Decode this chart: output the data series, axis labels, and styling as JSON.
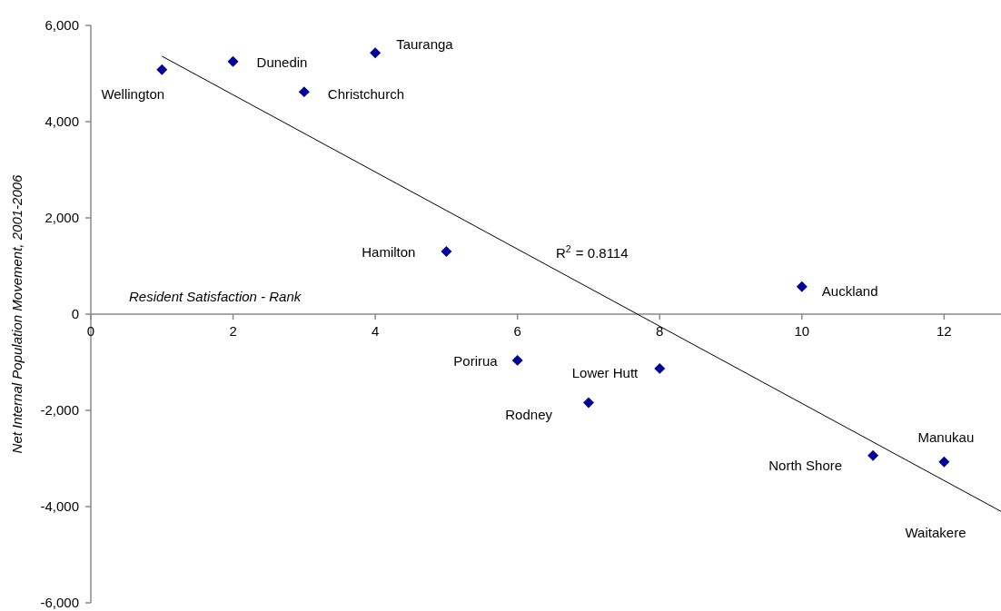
{
  "chart_data": {
    "type": "scatter",
    "xlabel": "Resident Satisfaction - Rank",
    "ylabel": "Net Internal Population Movement, 2001-2006",
    "series": [
      {
        "color": "#000099",
        "x": [
          1,
          2,
          3,
          4,
          5,
          6,
          7,
          8,
          10,
          11,
          12
        ],
        "values": [
          5080,
          5250,
          4620,
          5430,
          1300,
          -960,
          -1840,
          -1130,
          570,
          -2940,
          -3070
        ]
      },
      {
        "type": "line",
        "marker": "none",
        "color": "#000000",
        "x": [
          1,
          12.8
        ],
        "values": [
          5360,
          -4100
        ]
      }
    ],
    "xlim": [
      0,
      12.8
    ],
    "xticks": [
      0,
      2,
      4,
      6,
      8,
      10,
      12
    ],
    "ylim": [
      -6000,
      6000
    ],
    "yticks": [
      {
        "value": -6000,
        "label": "-6,000"
      },
      {
        "value": -4000,
        "label": "-4,000"
      },
      {
        "value": -2000,
        "label": "-2,000"
      },
      0,
      {
        "value": 2000,
        "label": "2,000"
      },
      {
        "value": 4000,
        "label": "4,000"
      },
      {
        "value": 6000,
        "label": "6,000"
      }
    ],
    "marker": "diamond",
    "grid": false,
    "annotations": [
      {
        "text": "Wellington",
        "x": 1,
        "y": 5080
      },
      {
        "text": "Dunedin",
        "x": 2,
        "y": 5250
      },
      {
        "text": "Christchurch",
        "x": 3,
        "y": 4620
      },
      {
        "text": "Tauranga",
        "x": 4,
        "y": 5430
      },
      {
        "text": "Hamilton",
        "x": 5,
        "y": 1300
      },
      {
        "text": "Porirua",
        "x": 6,
        "y": -960
      },
      {
        "text": "Rodney",
        "x": 7,
        "y": -1840
      },
      {
        "text": "Lower Hutt",
        "x": 8,
        "y": -1130
      },
      {
        "text": "Auckland",
        "x": 10,
        "y": 570
      },
      {
        "text": "North Shore",
        "x": 11,
        "y": -2940
      },
      {
        "text": "Manukau",
        "x": 12,
        "y": -3070
      },
      "R$^{2}$ = 0.8114",
      "Waitakere"
    ]
  }
}
